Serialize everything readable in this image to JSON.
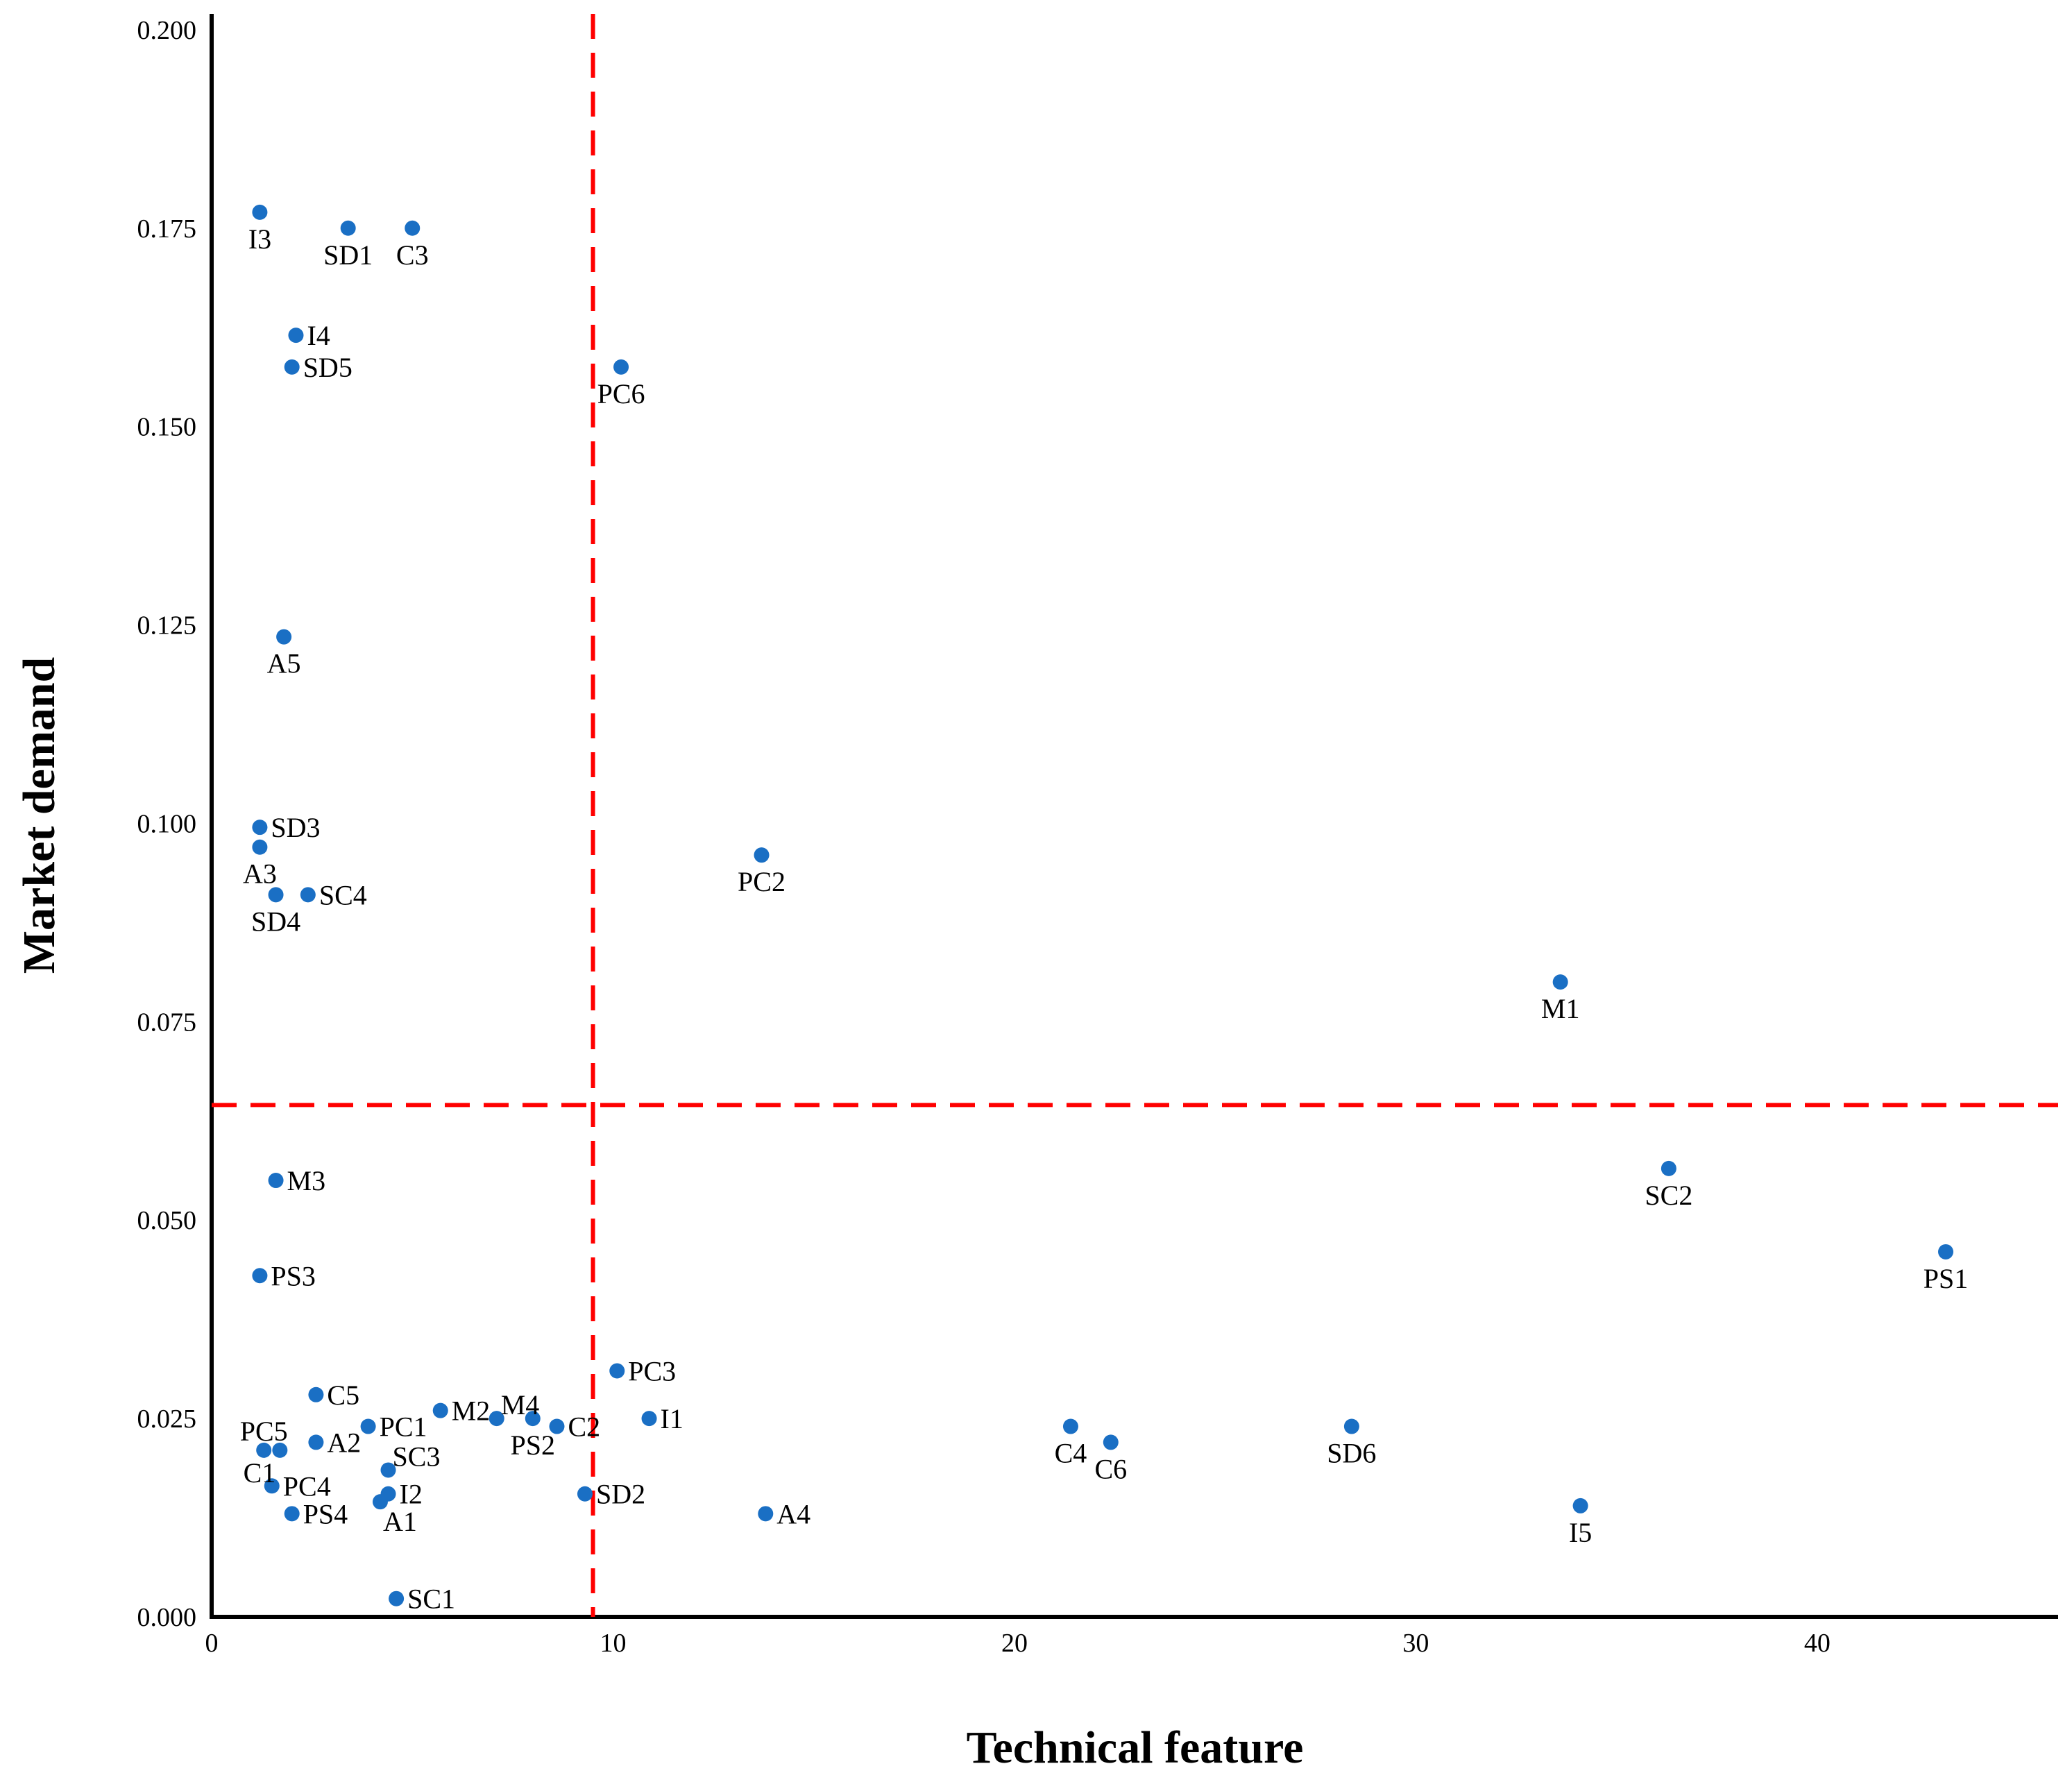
{
  "chart_data": {
    "type": "scatter",
    "title": "",
    "xlabel": "Technical feature",
    "ylabel": "Market demand",
    "xlim": [
      0,
      46
    ],
    "ylim": [
      0,
      0.202
    ],
    "xticks": [
      0,
      10,
      20,
      30,
      40
    ],
    "xtick_labels": [
      "0",
      "10",
      "20",
      "30",
      "40"
    ],
    "yticks": [
      0,
      0.025,
      0.05,
      0.075,
      0.1,
      0.125,
      0.15,
      0.175,
      0.2
    ],
    "ytick_labels": [
      "0.000",
      "0.025",
      "0.050",
      "0.075",
      "0.100",
      "0.125",
      "0.150",
      "0.175",
      "0.200"
    ],
    "grid": false,
    "legend": false,
    "point_color": "#1a6fc4",
    "threshold_color": "#ff0000",
    "thresholds": {
      "x": 9.5,
      "y": 0.0645
    },
    "points": [
      {
        "label": "I3",
        "x": 1.2,
        "y": 0.177,
        "pos": "below"
      },
      {
        "label": "SD1",
        "x": 3.4,
        "y": 0.175,
        "pos": "below"
      },
      {
        "label": "C3",
        "x": 5.0,
        "y": 0.175,
        "pos": "below"
      },
      {
        "label": "I4",
        "x": 2.1,
        "y": 0.1615,
        "pos": "right"
      },
      {
        "label": "SD5",
        "x": 2.0,
        "y": 0.1575,
        "pos": "right"
      },
      {
        "label": "PC6",
        "x": 10.2,
        "y": 0.1575,
        "pos": "below"
      },
      {
        "label": "A5",
        "x": 1.8,
        "y": 0.1235,
        "pos": "below"
      },
      {
        "label": "SD3",
        "x": 1.2,
        "y": 0.0995,
        "pos": "right"
      },
      {
        "label": "A3",
        "x": 1.2,
        "y": 0.097,
        "pos": "below"
      },
      {
        "label": "SD4",
        "x": 1.6,
        "y": 0.091,
        "pos": "below"
      },
      {
        "label": "SC4",
        "x": 2.4,
        "y": 0.091,
        "pos": "right"
      },
      {
        "label": "PC2",
        "x": 13.7,
        "y": 0.096,
        "pos": "below"
      },
      {
        "label": "M1",
        "x": 33.6,
        "y": 0.08,
        "pos": "below"
      },
      {
        "label": "M3",
        "x": 1.6,
        "y": 0.055,
        "pos": "right"
      },
      {
        "label": "SC2",
        "x": 36.3,
        "y": 0.0565,
        "pos": "below"
      },
      {
        "label": "PS3",
        "x": 1.2,
        "y": 0.043,
        "pos": "right"
      },
      {
        "label": "PS1",
        "x": 43.2,
        "y": 0.046,
        "pos": "below"
      },
      {
        "label": "PC3",
        "x": 10.1,
        "y": 0.031,
        "pos": "right"
      },
      {
        "label": "C5",
        "x": 2.6,
        "y": 0.028,
        "pos": "right"
      },
      {
        "label": "M2",
        "x": 5.7,
        "y": 0.026,
        "pos": "right"
      },
      {
        "label": "M4",
        "x": 7.1,
        "y": 0.025,
        "pos": "aboveright"
      },
      {
        "label": "PS2",
        "x": 8.0,
        "y": 0.025,
        "pos": "below"
      },
      {
        "label": "C2",
        "x": 8.6,
        "y": 0.024,
        "pos": "right"
      },
      {
        "label": "I1",
        "x": 10.9,
        "y": 0.025,
        "pos": "right"
      },
      {
        "label": "PC1",
        "x": 3.9,
        "y": 0.024,
        "pos": "right"
      },
      {
        "label": "PC5",
        "x": 1.3,
        "y": 0.021,
        "pos": "above"
      },
      {
        "label": "C1",
        "x": 1.7,
        "y": 0.021,
        "pos": "belowleft"
      },
      {
        "label": "A2",
        "x": 2.6,
        "y": 0.022,
        "pos": "right"
      },
      {
        "label": "SC3",
        "x": 4.4,
        "y": 0.0185,
        "pos": "aboveright"
      },
      {
        "label": "PC4",
        "x": 1.5,
        "y": 0.0165,
        "pos": "right"
      },
      {
        "label": "I2",
        "x": 4.4,
        "y": 0.0155,
        "pos": "right"
      },
      {
        "label": "A1",
        "x": 4.2,
        "y": 0.0145,
        "pos": "belowright"
      },
      {
        "label": "PS4",
        "x": 2.0,
        "y": 0.013,
        "pos": "right"
      },
      {
        "label": "SD2",
        "x": 9.3,
        "y": 0.0155,
        "pos": "right"
      },
      {
        "label": "A4",
        "x": 13.8,
        "y": 0.013,
        "pos": "right"
      },
      {
        "label": "C4",
        "x": 21.4,
        "y": 0.024,
        "pos": "below"
      },
      {
        "label": "C6",
        "x": 22.4,
        "y": 0.022,
        "pos": "below"
      },
      {
        "label": "SD6",
        "x": 28.4,
        "y": 0.024,
        "pos": "below"
      },
      {
        "label": "I5",
        "x": 34.1,
        "y": 0.014,
        "pos": "below"
      },
      {
        "label": "SC1",
        "x": 4.6,
        "y": 0.0023,
        "pos": "right"
      }
    ]
  }
}
